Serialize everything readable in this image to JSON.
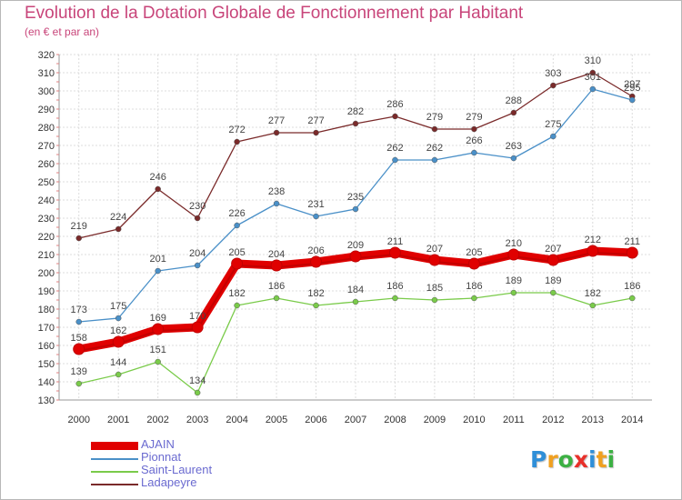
{
  "title": "Evolution de la Dotation Globale de Fonctionnement par Habitant",
  "subtitle": "(en € et par an)",
  "logo": {
    "text": [
      "P",
      "r",
      "o",
      "x",
      "i",
      "t",
      "i"
    ],
    "colors": [
      "#2f8fd8",
      "#f0a020",
      "#3cb043",
      "#e8302a",
      "#2f8fd8",
      "#f0a020",
      "#3cb043"
    ]
  },
  "chart_data": {
    "type": "line",
    "x": [
      2000,
      2001,
      2002,
      2003,
      2004,
      2005,
      2006,
      2007,
      2008,
      2009,
      2010,
      2011,
      2012,
      2013,
      2014
    ],
    "ylim": [
      130,
      320
    ],
    "yticks": [
      130,
      140,
      150,
      160,
      170,
      180,
      190,
      200,
      210,
      220,
      230,
      240,
      250,
      260,
      270,
      280,
      290,
      300,
      310,
      320
    ],
    "grid": true,
    "legend_position": "bottom-left",
    "series": [
      {
        "name": "Ladapeyre",
        "color": "#7a2a2a",
        "values": [
          219,
          224,
          246,
          230,
          272,
          277,
          277,
          282,
          286,
          279,
          279,
          288,
          303,
          310,
          297
        ]
      },
      {
        "name": "Pionnat",
        "color": "#4a90c8",
        "values": [
          173,
          175,
          201,
          204,
          226,
          238,
          231,
          235,
          262,
          262,
          266,
          263,
          275,
          301,
          295
        ]
      },
      {
        "name": "Saint-Laurent",
        "color": "#7acb4a",
        "values": [
          139,
          144,
          151,
          134,
          182,
          186,
          182,
          184,
          186,
          185,
          186,
          189,
          189,
          182,
          186
        ]
      },
      {
        "name": "AJAIN",
        "color": "#e00000",
        "values": [
          158,
          162,
          169,
          170,
          205,
          204,
          206,
          209,
          211,
          207,
          205,
          210,
          207,
          212,
          211
        ]
      }
    ],
    "legend_order": [
      "AJAIN",
      "Pionnat",
      "Saint-Laurent",
      "Ladapeyre"
    ]
  }
}
